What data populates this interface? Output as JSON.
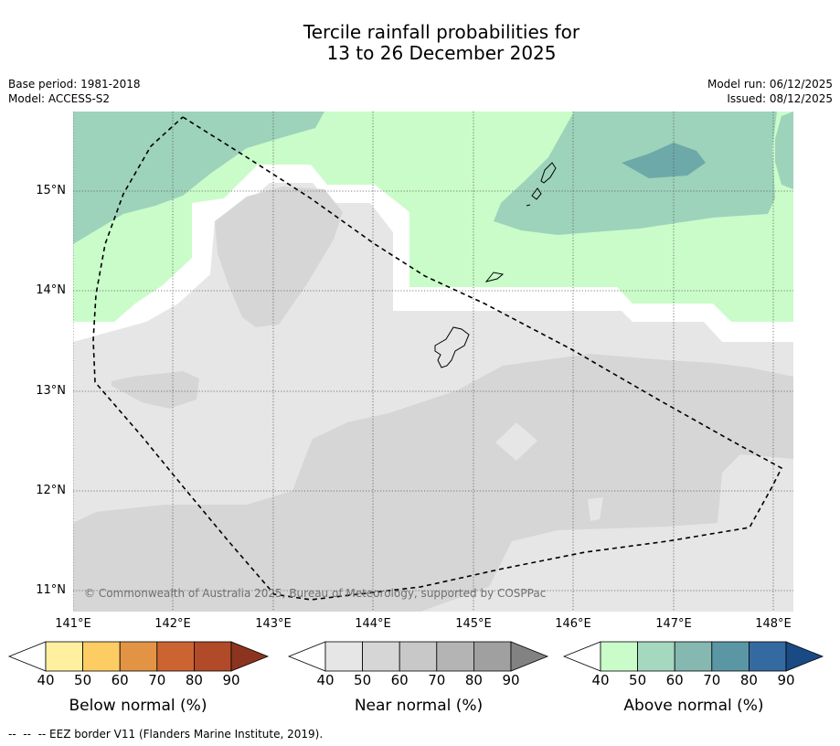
{
  "title": {
    "line1": "Tercile rainfall probabilities for",
    "line2": "13 to 26 December 2025"
  },
  "meta": {
    "base_period": "Base period: 1981-2018",
    "model": "Model: ACCESS-S2",
    "model_run": "Model run: 06/12/2025",
    "issued": "Issued: 08/12/2025"
  },
  "map": {
    "copyright": "© Commonwealth of Australia 2025, Bureau of Meteorology, supported by COSPPac",
    "lat_labels": [
      "15°N",
      "14°N",
      "13°N",
      "12°N",
      "11°N"
    ],
    "lon_labels": [
      "141°E",
      "142°E",
      "143°E",
      "144°E",
      "145°E",
      "146°E",
      "147°E",
      "148°E"
    ],
    "colors": {
      "ocean_near_40": "#e6e6e6",
      "near_50": "#d6d6d6",
      "above_40": "#c9fcc9",
      "above_50": "#9dd3bb",
      "above_70": "#6ea9a9",
      "white": "#ffffff"
    }
  },
  "colorbars": {
    "tick_labels": [
      "40",
      "50",
      "60",
      "70",
      "80",
      "90"
    ],
    "below": {
      "title": "Below normal (%)",
      "colors": [
        "#fff0a0",
        "#fdcd64",
        "#e29444",
        "#cc6432",
        "#b04a28",
        "#8c3420"
      ]
    },
    "near": {
      "title": "Near normal (%)",
      "colors": [
        "#e6e6e6",
        "#d6d6d6",
        "#c8c8c8",
        "#b4b4b4",
        "#a0a0a0",
        "#828282"
      ]
    },
    "above": {
      "title": "Above normal (%)",
      "colors": [
        "#c9fcc9",
        "#a4d8bf",
        "#84b8b0",
        "#5b96a5",
        "#356aa0",
        "#1a4a84"
      ]
    }
  },
  "footer": {
    "legend_text": "--  --  -- EEZ border V11 (Flanders Marine Institute, 2019)."
  }
}
